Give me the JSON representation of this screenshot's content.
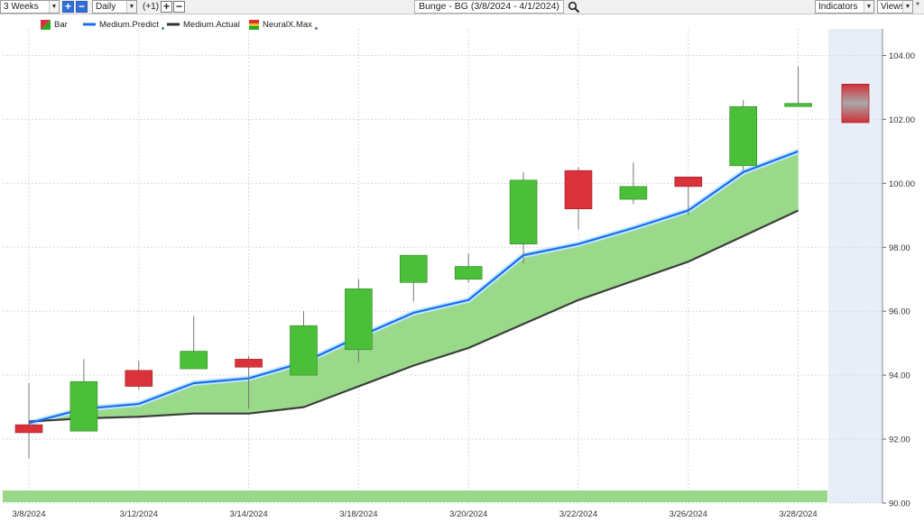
{
  "toolbar": {
    "range": "3 Weeks",
    "interval": "Daily",
    "offset": "(+1)",
    "title": "Bunge - BG (3/8/2024 - 4/1/2024)",
    "indicators": "Indicators",
    "views": "Views",
    "views_star": "*"
  },
  "legend": [
    {
      "label": "Bar",
      "icon": "bar-icon",
      "color": "#22aa22"
    },
    {
      "label": "Medium.Predict",
      "icon": "line-icon",
      "color": "#1a6cf0",
      "dot": true
    },
    {
      "label": "Medium.Actual",
      "icon": "line-icon",
      "color": "#333333"
    },
    {
      "label": "NeuralX.Max",
      "icon": "neural-icon",
      "color": "#e03030",
      "dot": true
    }
  ],
  "colors": {
    "up": "#4cbf3a",
    "down": "#d9323a",
    "predict": "#1a6cf0",
    "actual": "#3a3f3a",
    "band": "#9ad98a",
    "forecast_region": "#e8eef7"
  },
  "chart_data": {
    "type": "candlestick",
    "y_range": [
      90,
      105
    ],
    "y_ticks": [
      "90.00",
      "92.00",
      "94.00",
      "96.00",
      "98.00",
      "100.00",
      "102.00",
      "104.00"
    ],
    "x_tick_labels": [
      "3/8/2024",
      "3/12/2024",
      "3/14/2024",
      "3/18/2024",
      "3/20/2024",
      "3/22/2024",
      "3/26/2024",
      "3/28/2024"
    ],
    "x_tick_indices": [
      0,
      2,
      4,
      6,
      8,
      10,
      12,
      14
    ],
    "bars": [
      {
        "open": 92.45,
        "high": 93.75,
        "low": 91.4,
        "close": 92.2
      },
      {
        "open": 92.25,
        "high": 94.5,
        "low": 92.25,
        "close": 93.8
      },
      {
        "open": 94.15,
        "high": 94.45,
        "low": 93.55,
        "close": 93.65
      },
      {
        "open": 94.2,
        "high": 95.85,
        "low": 94.2,
        "close": 94.75
      },
      {
        "open": 94.5,
        "high": 94.6,
        "low": 92.95,
        "close": 94.25
      },
      {
        "open": 94.0,
        "high": 96.0,
        "low": 94.0,
        "close": 95.55
      },
      {
        "open": 94.8,
        "high": 97.0,
        "low": 94.4,
        "close": 96.7
      },
      {
        "open": 96.9,
        "high": 97.75,
        "low": 96.3,
        "close": 97.75
      },
      {
        "open": 97.0,
        "high": 97.8,
        "low": 96.9,
        "close": 97.4
      },
      {
        "open": 98.1,
        "high": 100.35,
        "low": 97.5,
        "close": 100.1
      },
      {
        "open": 100.4,
        "high": 100.5,
        "low": 98.55,
        "close": 99.2
      },
      {
        "open": 99.5,
        "high": 100.65,
        "low": 99.35,
        "close": 99.9
      },
      {
        "open": 100.2,
        "high": 100.2,
        "low": 99.0,
        "close": 99.9
      },
      {
        "open": 100.55,
        "high": 102.6,
        "low": 100.4,
        "close": 102.4
      },
      {
        "open": 102.4,
        "high": 103.65,
        "low": 102.4,
        "close": 102.5
      }
    ],
    "series": [
      {
        "name": "Medium.Predict",
        "values": [
          92.5,
          92.95,
          93.1,
          93.75,
          93.9,
          94.4,
          95.2,
          95.95,
          96.35,
          97.75,
          98.1,
          98.6,
          99.15,
          100.35,
          101.0
        ]
      },
      {
        "name": "Medium.Actual",
        "values": [
          92.55,
          92.65,
          92.7,
          92.8,
          92.8,
          93.0,
          93.65,
          94.3,
          94.85,
          95.6,
          96.35,
          96.95,
          97.55,
          98.35,
          99.15
        ]
      }
    ],
    "forecast": {
      "label": "NeuralX.Max",
      "high": 103.1,
      "low": 101.9
    },
    "grid": true,
    "legend_position": "top-left"
  }
}
